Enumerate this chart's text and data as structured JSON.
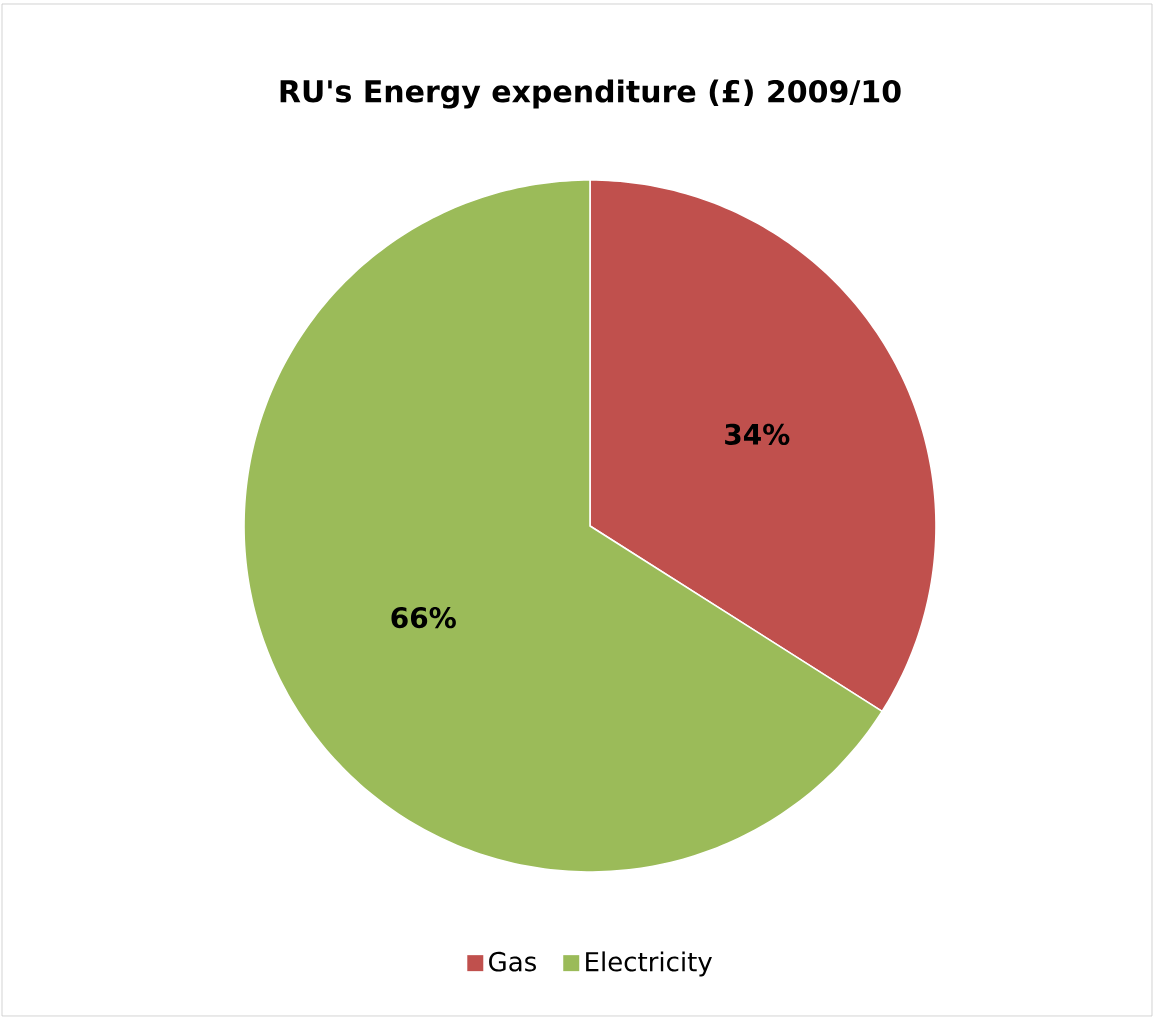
{
  "chart_data": {
    "type": "pie",
    "title": "RU's Energy expenditure (£)   2009/10",
    "categories": [
      "Gas",
      "Electricity"
    ],
    "values": [
      34,
      66
    ],
    "value_labels": [
      "34%",
      "66%"
    ],
    "colors": [
      "#c0504d",
      "#9bbb59"
    ],
    "legend": "bottom"
  }
}
